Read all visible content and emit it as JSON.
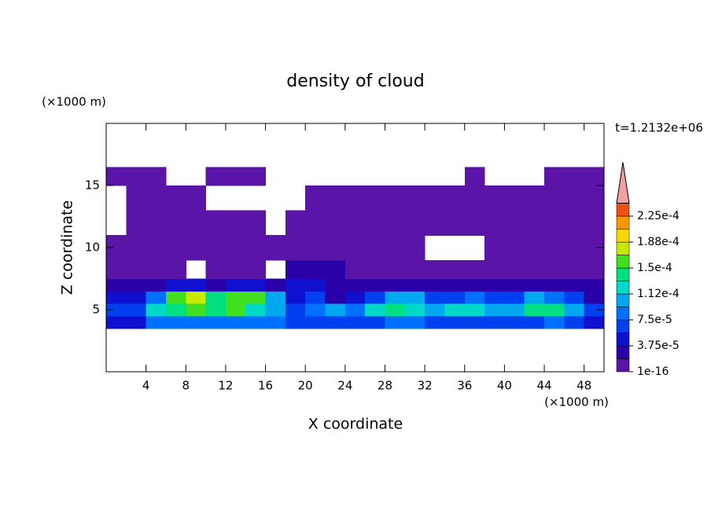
{
  "chart_data": {
    "type": "contour",
    "title": "density of cloud",
    "x_label": "X coordinate",
    "y_label": "Z coordinate",
    "x_unit": "(×1000 m)",
    "y_unit": "(×1000 m)",
    "annotation": "t=1.2132e+06",
    "xlim": [
      0,
      50
    ],
    "ylim": [
      0,
      20
    ],
    "xticks": [
      4,
      8,
      12,
      16,
      20,
      24,
      28,
      32,
      36,
      40,
      44,
      48
    ],
    "yticks": [
      5,
      10,
      15
    ],
    "x_edges": [
      0,
      2,
      4,
      6,
      8,
      10,
      12,
      14,
      16,
      18,
      20,
      22,
      24,
      26,
      28,
      30,
      32,
      34,
      36,
      38,
      40,
      42,
      44,
      46,
      48,
      50
    ],
    "z_edges": [
      3.5,
      4.5,
      5.5,
      6.5,
      7.5,
      9,
      11,
      13,
      15,
      16.5
    ],
    "values": [
      [
        4e-05,
        5e-05,
        8e-05,
        9e-05,
        9e-05,
        9e-05,
        9e-05,
        9e-05,
        8e-05,
        6e-05,
        6e-05,
        7e-05,
        6e-05,
        6e-05,
        8e-05,
        8e-05,
        7e-05,
        6e-05,
        7e-05,
        7e-05,
        6e-05,
        7e-05,
        8e-05,
        7e-05,
        4e-05
      ],
      [
        6e-05,
        7e-05,
        0.00012,
        0.00014,
        0.00015,
        0.00014,
        0.00015,
        0.00013,
        0.0001,
        7e-05,
        9e-05,
        0.0001,
        9e-05,
        0.00012,
        0.000135,
        0.00013,
        0.0001,
        0.00012,
        0.00012,
        0.0001,
        0.00011,
        0.00014,
        0.00014,
        0.00011,
        7e-05
      ],
      [
        4e-05,
        4e-05,
        8e-05,
        0.00016,
        0.00017,
        0.00014,
        0.00016,
        0.00015,
        0.0001,
        5e-05,
        6e-05,
        3e-05,
        4e-05,
        6e-05,
        0.0001,
        0.00011,
        7e-05,
        6e-05,
        8e-05,
        6e-05,
        7e-05,
        0.0001,
        8e-05,
        6e-05,
        3e-05
      ],
      [
        2e-05,
        2e-05,
        3e-05,
        4e-05,
        4e-05,
        3e-05,
        4e-05,
        4e-05,
        3e-05,
        4e-05,
        4e-05,
        3e-05,
        2e-05,
        2e-05,
        3e-05,
        3e-05,
        3e-05,
        2e-05,
        2e-05,
        2e-05,
        2e-05,
        3e-05,
        2e-05,
        2e-05,
        2e-05
      ],
      [
        1e-06,
        1e-06,
        1e-06,
        1e-06,
        null,
        1e-06,
        1e-06,
        1e-06,
        null,
        2e-05,
        2e-05,
        2e-05,
        1e-06,
        1e-06,
        1e-06,
        1e-06,
        1e-06,
        1e-06,
        1e-06,
        1e-06,
        1e-06,
        1e-06,
        1e-06,
        1e-06,
        1e-06
      ],
      [
        1e-05,
        1e-05,
        1e-06,
        1e-06,
        1e-06,
        1e-06,
        1e-06,
        1e-06,
        1e-06,
        1e-05,
        1e-05,
        1e-06,
        1e-06,
        1e-06,
        1e-06,
        1e-06,
        null,
        null,
        null,
        1e-06,
        1e-06,
        1e-06,
        1e-06,
        1e-06,
        1e-05
      ],
      [
        null,
        1e-06,
        1e-06,
        1e-06,
        1e-06,
        1e-06,
        1e-06,
        1e-06,
        null,
        1e-06,
        1e-06,
        1e-06,
        1e-06,
        1e-06,
        1e-06,
        1e-06,
        1e-06,
        1e-06,
        1e-06,
        1e-06,
        1e-06,
        1e-06,
        1e-06,
        1e-06,
        1e-06
      ],
      [
        null,
        1e-06,
        1e-06,
        1e-06,
        1e-06,
        null,
        null,
        null,
        null,
        null,
        1e-06,
        1e-06,
        1e-06,
        1e-06,
        1e-06,
        1e-06,
        1e-06,
        1e-06,
        1e-06,
        1e-06,
        1e-06,
        1e-06,
        1e-06,
        1e-06,
        1e-06
      ],
      [
        1e-06,
        1e-06,
        1e-06,
        null,
        null,
        1e-06,
        1e-06,
        1e-06,
        null,
        null,
        null,
        null,
        null,
        null,
        null,
        null,
        null,
        null,
        1e-06,
        null,
        null,
        null,
        1e-06,
        1e-06,
        1e-06
      ]
    ],
    "colorbar": {
      "levels": [
        1e-16,
        1.875e-05,
        3.75e-05,
        5.625e-05,
        7.5e-05,
        9.375e-05,
        0.0001125,
        0.00013125,
        0.00015,
        0.00016875,
        0.0001875,
        0.00020625,
        0.000225,
        0.00024375
      ],
      "ticks": [
        {
          "value": 1e-16,
          "label": "1e-16"
        },
        {
          "value": 3.75e-05,
          "label": "3.75e-5"
        },
        {
          "value": 7.5e-05,
          "label": "7.5e-5"
        },
        {
          "value": 0.0001125,
          "label": "1.12e-4"
        },
        {
          "value": 0.00015,
          "label": "1.5e-4"
        },
        {
          "value": 0.0001875,
          "label": "1.88e-4"
        },
        {
          "value": 0.000225,
          "label": "2.25e-4"
        }
      ],
      "colors": [
        "#5a14a8",
        "#2a00a8",
        "#1010d0",
        "#0040f0",
        "#0070ff",
        "#00a8f0",
        "#00d8c8",
        "#00e080",
        "#40e020",
        "#c8e800",
        "#f8d800",
        "#f89800",
        "#f05010"
      ],
      "extend_color": "#f0a0a0"
    }
  }
}
